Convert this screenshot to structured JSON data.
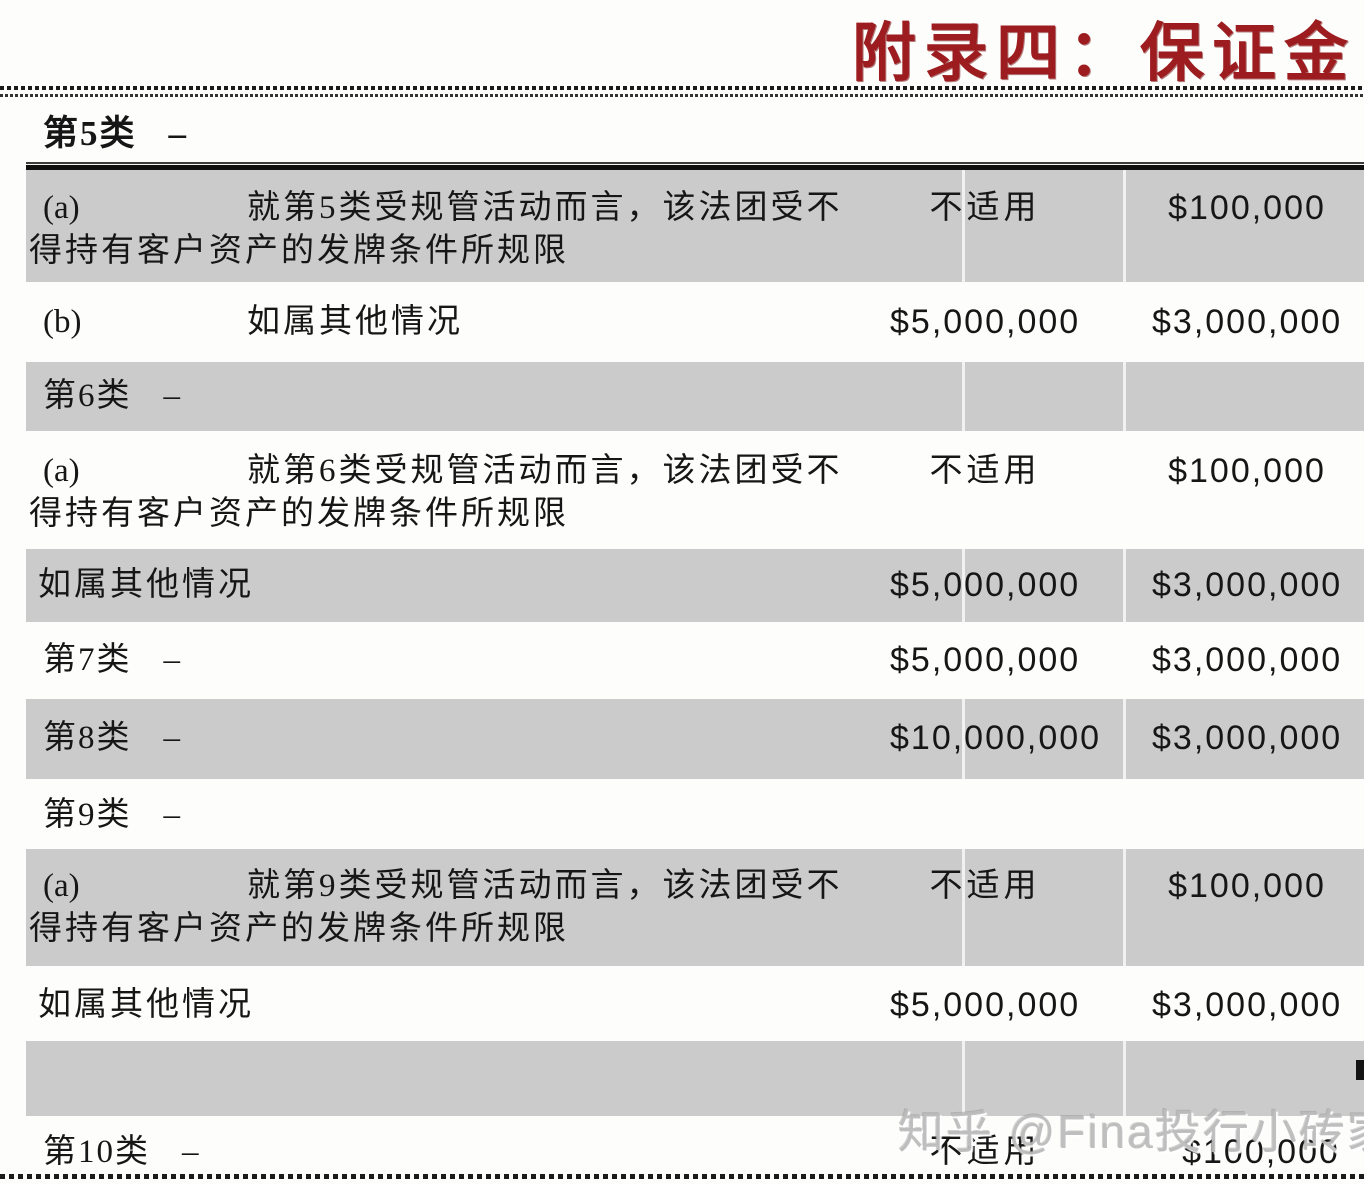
{
  "title": "附录四：保证金",
  "watermark": "知乎 @Fina投行小砖家",
  "colors": {
    "accent_red": "#9c1c1f",
    "row_shade": "#cbcbcb",
    "text": "#161616"
  },
  "table": {
    "rows": [
      {
        "id": "cat5-header",
        "kind": "section",
        "shaded": false,
        "bold": true,
        "label": "第5类",
        "dash": "–",
        "col2": "",
        "col3": ""
      },
      {
        "id": "cat5-a",
        "kind": "detail",
        "shaded": true,
        "marker": "(a)",
        "line1": "就第5类受规管活动而言，该法团受不",
        "line2": "得持有客户资产的发牌条件所规限",
        "col2": "不适用",
        "col3": "$100,000"
      },
      {
        "id": "cat5-b",
        "kind": "detail",
        "shaded": false,
        "marker": "(b)",
        "line1": "如属其他情况",
        "line2": "",
        "col2": "$5,000,000",
        "col3": "$3,000,000"
      },
      {
        "id": "cat6-header",
        "kind": "section",
        "shaded": true,
        "bold": false,
        "label": "第6类",
        "dash": "–",
        "col2": "",
        "col3": ""
      },
      {
        "id": "cat6-a",
        "kind": "detail",
        "shaded": false,
        "marker": "(a)",
        "line1": "就第6类受规管活动而言，该法团受不",
        "line2": "得持有客户资产的发牌条件所规限",
        "col2": "不适用",
        "col3": "$100,000"
      },
      {
        "id": "cat6-other",
        "kind": "detail-left",
        "shaded": true,
        "line1": "如属其他情况",
        "col2": "$5,000,000",
        "col3": "$3,000,000"
      },
      {
        "id": "cat7",
        "kind": "section",
        "shaded": false,
        "bold": false,
        "label": "第7类",
        "dash": "–",
        "col2": "$5,000,000",
        "col3": "$3,000,000"
      },
      {
        "id": "cat8",
        "kind": "section",
        "shaded": true,
        "bold": false,
        "label": "第8类",
        "dash": "–",
        "col2": "$10,000,000",
        "col3": "$3,000,000"
      },
      {
        "id": "cat9-header",
        "kind": "section",
        "shaded": false,
        "bold": false,
        "label": "第9类",
        "dash": "–",
        "col2": "",
        "col3": ""
      },
      {
        "id": "cat9-a",
        "kind": "detail",
        "shaded": true,
        "marker": "(a)",
        "line1": "就第9类受规管活动而言，该法团受不",
        "line2": "得持有客户资产的发牌条件所规限",
        "col2": "不适用",
        "col3": "$100,000"
      },
      {
        "id": "cat9-other",
        "kind": "detail-left",
        "shaded": false,
        "line1": "如属其他情况",
        "col2": "$5,000,000",
        "col3": "$3,000,000"
      },
      {
        "id": "spacer-row",
        "kind": "empty",
        "shaded": true,
        "col2": "",
        "col3": ""
      },
      {
        "id": "cat10",
        "kind": "section",
        "shaded": false,
        "bold": false,
        "label": "第10类",
        "dash": "–",
        "col2": "不适用",
        "col3": "$100,000",
        "c3_shift": true
      }
    ]
  }
}
